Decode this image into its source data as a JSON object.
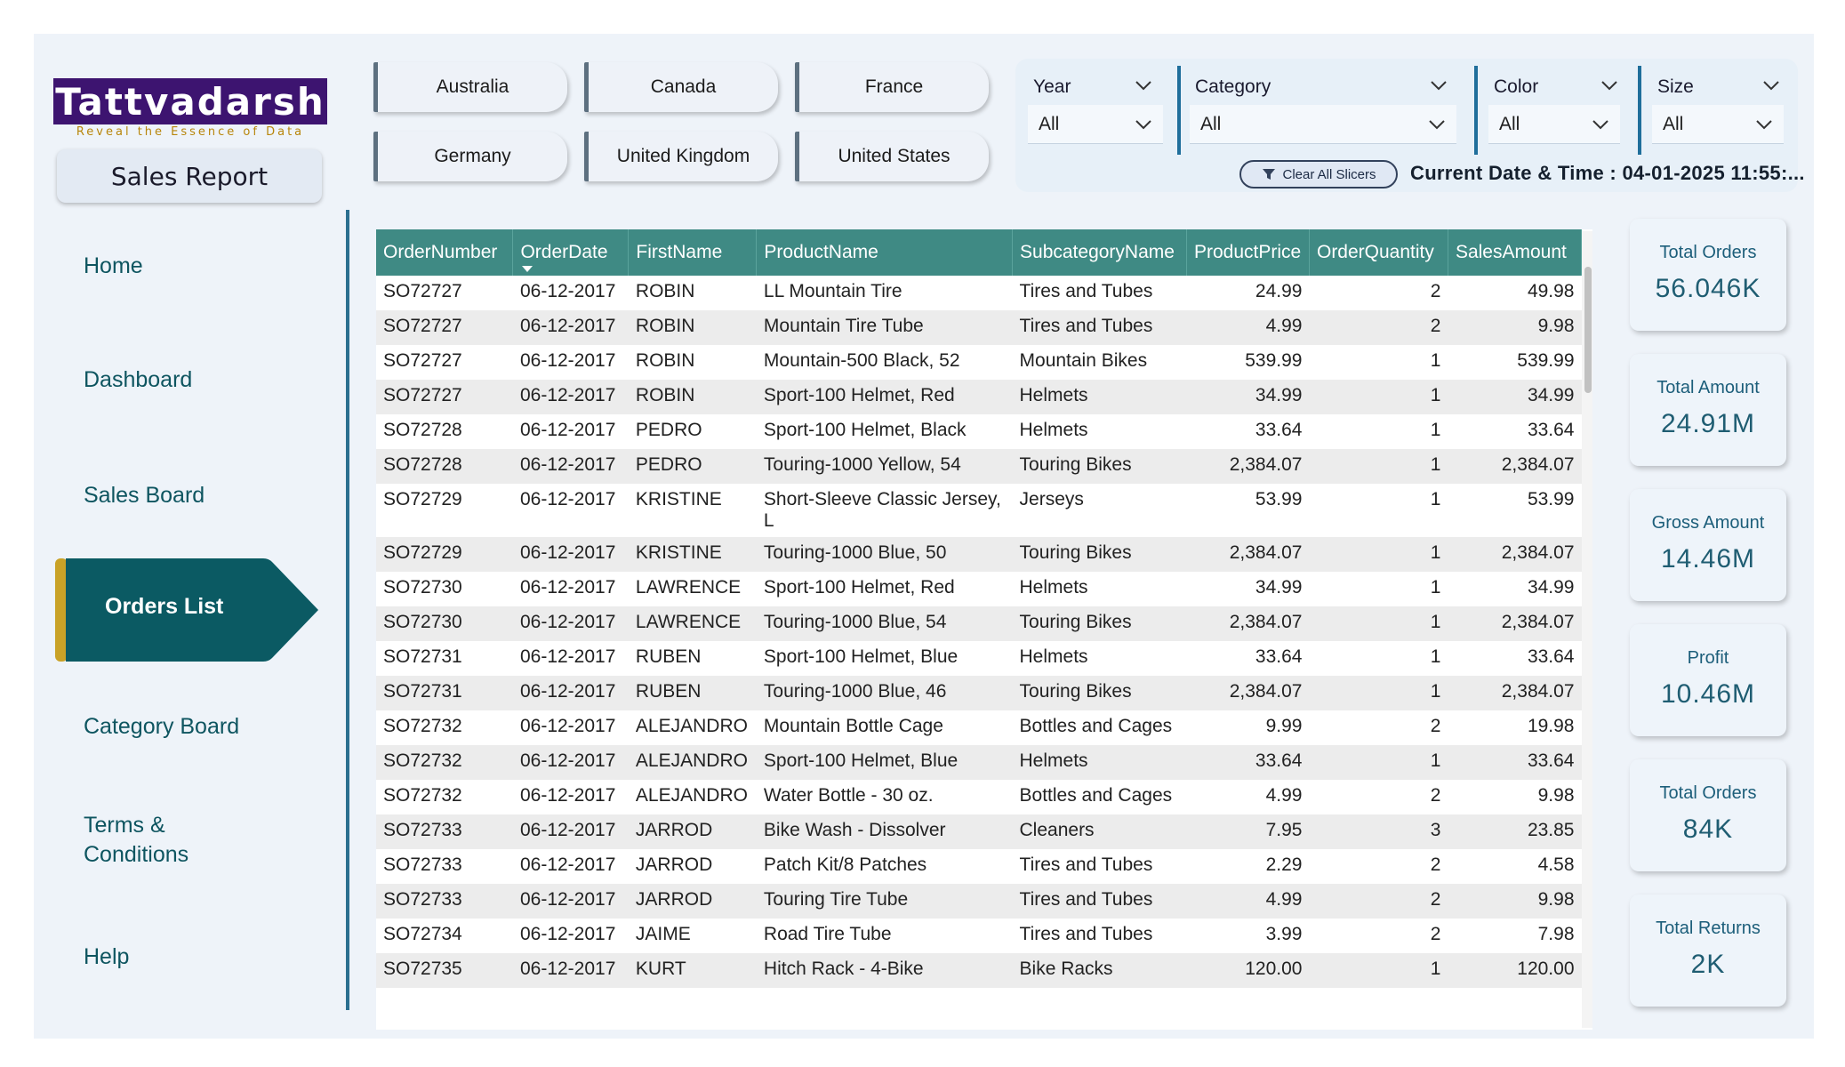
{
  "brand": {
    "logo_text": "Tattvadarsh",
    "tagline": "Reveal the Essence of Data",
    "report_title": "Sales Report"
  },
  "nav": {
    "items": [
      {
        "label": "Home"
      },
      {
        "label": "Dashboard"
      },
      {
        "label": "Sales Board"
      },
      {
        "label": "Orders List",
        "active": true
      },
      {
        "label": "Category Board"
      },
      {
        "label": "Terms & Conditions"
      },
      {
        "label": "Help"
      }
    ]
  },
  "countries": [
    "Australia",
    "Canada",
    "France",
    "Germany",
    "United Kingdom",
    "United States"
  ],
  "slicers": {
    "year": {
      "label": "Year",
      "value": "All"
    },
    "category": {
      "label": "Category",
      "value": "All"
    },
    "color": {
      "label": "Color",
      "value": "All"
    },
    "size": {
      "label": "Size",
      "value": "All"
    },
    "clear_label": "Clear All Slicers"
  },
  "datetime": "Current Date & Time : 04-01-2025 11:55:...",
  "table": {
    "columns": [
      "OrderNumber",
      "OrderDate",
      "FirstName",
      "ProductName",
      "SubcategoryName",
      "ProductPrice",
      "OrderQuantity",
      "SalesAmount"
    ],
    "rows": [
      [
        "SO72727",
        "06-12-2017",
        "ROBIN",
        "LL Mountain Tire",
        "Tires and Tubes",
        "24.99",
        "2",
        "49.98"
      ],
      [
        "SO72727",
        "06-12-2017",
        "ROBIN",
        "Mountain Tire Tube",
        "Tires and Tubes",
        "4.99",
        "2",
        "9.98"
      ],
      [
        "SO72727",
        "06-12-2017",
        "ROBIN",
        "Mountain-500 Black, 52",
        "Mountain Bikes",
        "539.99",
        "1",
        "539.99"
      ],
      [
        "SO72727",
        "06-12-2017",
        "ROBIN",
        "Sport-100 Helmet, Red",
        "Helmets",
        "34.99",
        "1",
        "34.99"
      ],
      [
        "SO72728",
        "06-12-2017",
        "PEDRO",
        "Sport-100 Helmet, Black",
        "Helmets",
        "33.64",
        "1",
        "33.64"
      ],
      [
        "SO72728",
        "06-12-2017",
        "PEDRO",
        "Touring-1000 Yellow, 54",
        "Touring Bikes",
        "2,384.07",
        "1",
        "2,384.07"
      ],
      [
        "SO72729",
        "06-12-2017",
        "KRISTINE",
        "Short-Sleeve Classic Jersey, L",
        "Jerseys",
        "53.99",
        "1",
        "53.99"
      ],
      [
        "SO72729",
        "06-12-2017",
        "KRISTINE",
        "Touring-1000 Blue, 50",
        "Touring Bikes",
        "2,384.07",
        "1",
        "2,384.07"
      ],
      [
        "SO72730",
        "06-12-2017",
        "LAWRENCE",
        "Sport-100 Helmet, Red",
        "Helmets",
        "34.99",
        "1",
        "34.99"
      ],
      [
        "SO72730",
        "06-12-2017",
        "LAWRENCE",
        "Touring-1000 Blue, 54",
        "Touring Bikes",
        "2,384.07",
        "1",
        "2,384.07"
      ],
      [
        "SO72731",
        "06-12-2017",
        "RUBEN",
        "Sport-100 Helmet, Blue",
        "Helmets",
        "33.64",
        "1",
        "33.64"
      ],
      [
        "SO72731",
        "06-12-2017",
        "RUBEN",
        "Touring-1000 Blue, 46",
        "Touring Bikes",
        "2,384.07",
        "1",
        "2,384.07"
      ],
      [
        "SO72732",
        "06-12-2017",
        "ALEJANDRO",
        "Mountain Bottle Cage",
        "Bottles and Cages",
        "9.99",
        "2",
        "19.98"
      ],
      [
        "SO72732",
        "06-12-2017",
        "ALEJANDRO",
        "Sport-100 Helmet, Blue",
        "Helmets",
        "33.64",
        "1",
        "33.64"
      ],
      [
        "SO72732",
        "06-12-2017",
        "ALEJANDRO",
        "Water Bottle - 30 oz.",
        "Bottles and Cages",
        "4.99",
        "2",
        "9.98"
      ],
      [
        "SO72733",
        "06-12-2017",
        "JARROD",
        "Bike Wash - Dissolver",
        "Cleaners",
        "7.95",
        "3",
        "23.85"
      ],
      [
        "SO72733",
        "06-12-2017",
        "JARROD",
        "Patch Kit/8 Patches",
        "Tires and Tubes",
        "2.29",
        "2",
        "4.58"
      ],
      [
        "SO72733",
        "06-12-2017",
        "JARROD",
        "Touring Tire Tube",
        "Tires and Tubes",
        "4.99",
        "2",
        "9.98"
      ],
      [
        "SO72734",
        "06-12-2017",
        "JAIME",
        "Road Tire Tube",
        "Tires and Tubes",
        "3.99",
        "2",
        "7.98"
      ],
      [
        "SO72735",
        "06-12-2017",
        "KURT",
        "Hitch Rack - 4-Bike",
        "Bike Racks",
        "120.00",
        "1",
        "120.00"
      ]
    ]
  },
  "kpis": [
    {
      "label": "Total Orders",
      "value": "56.046K"
    },
    {
      "label": "Total Amount",
      "value": "24.91M"
    },
    {
      "label": "Gross Amount",
      "value": "14.46M"
    },
    {
      "label": "Profit",
      "value": "10.46M"
    },
    {
      "label": "Total Orders",
      "value": "84K"
    },
    {
      "label": "Total Returns",
      "value": "2K"
    }
  ],
  "colors": {
    "logo_bg": "#3d1470",
    "active_nav": "#0b5a63",
    "active_accent": "#c9a227",
    "table_header": "#3f8a84"
  },
  "icons": {
    "slicer_dropdown": "chevron-down-icon",
    "clear": "eraser-icon"
  }
}
